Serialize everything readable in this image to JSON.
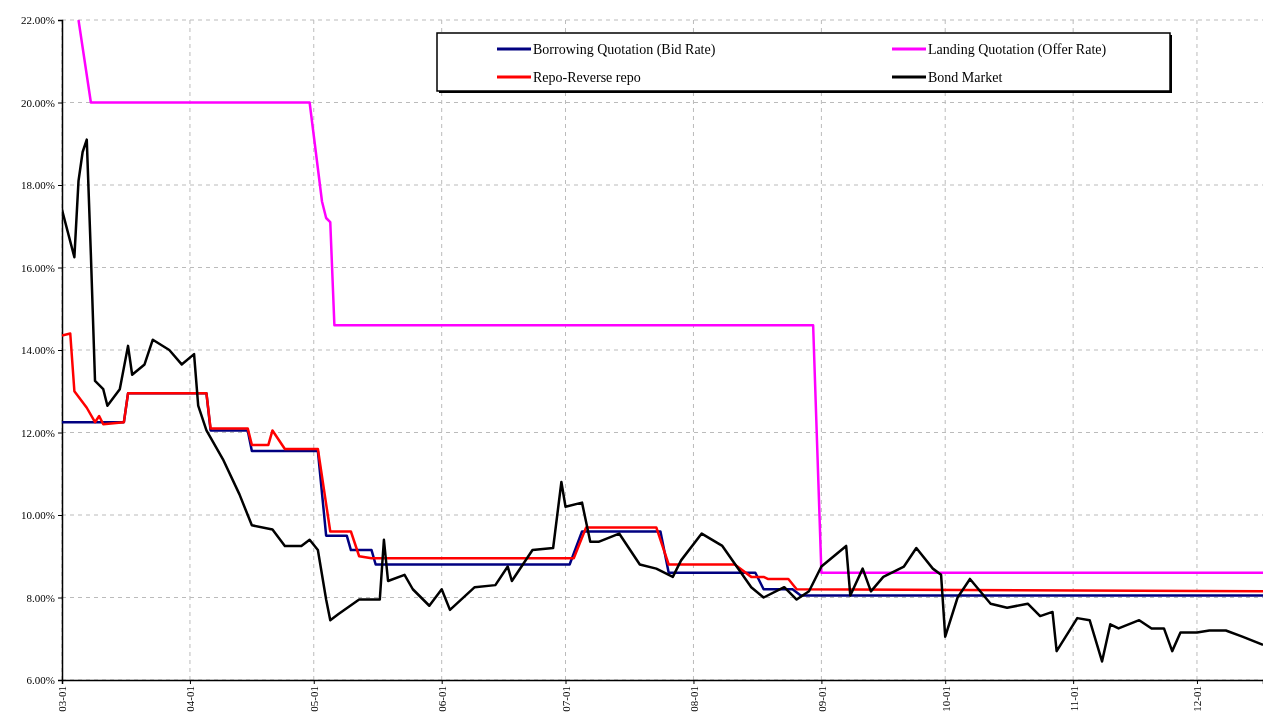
{
  "chart_data": {
    "type": "line",
    "xlim": [
      "--03-01",
      "--12-17"
    ],
    "ylim": [
      6,
      22
    ],
    "xticks": [
      {
        "value": "--03-01",
        "label": "03-01"
      },
      {
        "value": "--04-01",
        "label": "04-01"
      },
      {
        "value": "--05-01",
        "label": "05-01"
      },
      {
        "value": "--06-01",
        "label": "06-01"
      },
      {
        "value": "--07-01",
        "label": "07-01"
      },
      {
        "value": "--08-01",
        "label": "08-01"
      },
      {
        "value": "--09-01",
        "label": "09-01"
      },
      {
        "value": "--10-01",
        "label": "10-01"
      },
      {
        "value": "--11-01",
        "label": "11-01"
      },
      {
        "value": "--12-01",
        "label": "12-01"
      }
    ],
    "yticks": [
      {
        "value": 6,
        "label": "6.00%"
      },
      {
        "value": 8,
        "label": "8.00%"
      },
      {
        "value": 10,
        "label": "10.00%"
      },
      {
        "value": 12,
        "label": "12.00%"
      },
      {
        "value": 14,
        "label": "14.00%"
      },
      {
        "value": 16,
        "label": "16.00%"
      },
      {
        "value": 18,
        "label": "18.00%"
      },
      {
        "value": 20,
        "label": "20.00%"
      },
      {
        "value": 22,
        "label": "22.00%"
      }
    ],
    "grid": true,
    "legend": "top right",
    "series": [
      {
        "name": "Borrowing Quotation (Bid Rate)",
        "color": "#000080",
        "x": [
          "--03-01",
          "--03-16",
          "--03-17",
          "--04-05",
          "--04-06",
          "--04-15",
          "--04-16",
          "--05-02",
          "--05-04",
          "--05-09",
          "--05-10",
          "--05-15",
          "--05-16",
          "--07-02",
          "--07-05",
          "--07-24",
          "--07-26",
          "--08-16",
          "--08-18",
          "--08-25",
          "--08-27",
          "--12-17"
        ],
        "values": [
          12.25,
          12.25,
          12.95,
          12.95,
          12.05,
          12.05,
          11.55,
          11.55,
          9.5,
          9.5,
          9.15,
          9.15,
          8.8,
          8.8,
          9.6,
          9.6,
          8.6,
          8.6,
          8.2,
          8.2,
          8.05,
          8.05
        ]
      },
      {
        "name": "Landing Quotation (Offer Rate)",
        "color": "#ff00ff",
        "x": [
          "--03-05",
          "--03-08",
          "--04-30",
          "--05-03",
          "--05-04",
          "--05-05",
          "--05-06",
          "--08-30",
          "--08-31",
          "--09-01",
          "--12-17"
        ],
        "values": [
          22,
          20,
          20,
          17.6,
          17.2,
          17.1,
          14.6,
          14.6,
          11.6,
          8.6,
          8.6
        ]
      },
      {
        "name": "Repo-Reverse repo",
        "color": "#ff0000",
        "x": [
          "--03-01",
          "--03-03",
          "--03-04",
          "--03-07",
          "--03-09",
          "--03-10",
          "--03-11",
          "--03-16",
          "--03-17",
          "--04-05",
          "--04-06",
          "--04-15",
          "--04-16",
          "--04-20",
          "--04-21",
          "--04-24",
          "--05-02",
          "--05-05",
          "--05-10",
          "--05-12",
          "--05-15",
          "--07-03",
          "--07-06",
          "--07-23",
          "--07-26",
          "--08-11",
          "--08-15",
          "--08-18",
          "--08-19",
          "--08-24",
          "--08-26",
          "--12-17"
        ],
        "values": [
          14.35,
          14.4,
          13,
          12.6,
          12.25,
          12.4,
          12.2,
          12.25,
          12.95,
          12.95,
          12.1,
          12.1,
          11.7,
          11.7,
          12.05,
          11.6,
          11.6,
          9.6,
          9.6,
          9,
          8.95,
          8.95,
          9.7,
          9.7,
          8.8,
          8.8,
          8.5,
          8.5,
          8.45,
          8.45,
          8.2,
          8.15
        ]
      },
      {
        "name": "Bond Market",
        "color": "#000000",
        "x": [
          "--03-01",
          "--03-04",
          "--03-05",
          "--03-06",
          "--03-07",
          "--03-08",
          "--03-09",
          "--03-11",
          "--03-12",
          "--03-15",
          "--03-17",
          "--03-18",
          "--03-21",
          "--03-23",
          "--03-27",
          "--03-30",
          "--04-02",
          "--04-03",
          "--04-05",
          "--04-09",
          "--04-13",
          "--04-16",
          "--04-21",
          "--04-24",
          "--04-28",
          "--04-30",
          "--05-02",
          "--05-04",
          "--05-05",
          "--05-07",
          "--05-12",
          "--05-17",
          "--05-18",
          "--05-19",
          "--05-23",
          "--05-25",
          "--05-29",
          "--06-01",
          "--06-03",
          "--06-09",
          "--06-14",
          "--06-17",
          "--06-18",
          "--06-23",
          "--06-28",
          "--06-30",
          "--07-01",
          "--07-05",
          "--07-07",
          "--07-09",
          "--07-14",
          "--07-19",
          "--07-23",
          "--07-27",
          "--07-29",
          "--08-03",
          "--08-08",
          "--08-15",
          "--08-18",
          "--08-23",
          "--08-26",
          "--08-29",
          "--09-01",
          "--09-07",
          "--09-08",
          "--09-11",
          "--09-13",
          "--09-16",
          "--09-21",
          "--09-24",
          "--09-28",
          "--09-30",
          "--10-01",
          "--10-04",
          "--10-07",
          "--10-12",
          "--10-16",
          "--10-21",
          "--10-24",
          "--10-27",
          "--10-28",
          "--11-02",
          "--11-05",
          "--11-08",
          "--11-10",
          "--11-12",
          "--11-17",
          "--11-20",
          "--11-23",
          "--11-25",
          "--11-27",
          "--12-01",
          "--12-04",
          "--12-08",
          "--12-12",
          "--12-17"
        ],
        "values": [
          17.4,
          16.25,
          18.1,
          18.8,
          19.1,
          16.3,
          13.25,
          13.05,
          12.65,
          13.05,
          14.1,
          13.4,
          13.65,
          14.25,
          14,
          13.65,
          13.9,
          12.65,
          12.05,
          11.35,
          10.5,
          9.75,
          9.65,
          9.25,
          9.25,
          9.4,
          9.15,
          7.95,
          7.45,
          7.6,
          7.95,
          7.95,
          9.4,
          8.4,
          8.55,
          8.2,
          7.8,
          8.2,
          7.7,
          8.25,
          8.3,
          8.75,
          8.4,
          9.15,
          9.2,
          10.8,
          10.2,
          10.3,
          9.35,
          9.35,
          9.55,
          8.8,
          8.7,
          8.5,
          8.9,
          9.55,
          9.25,
          8.25,
          8,
          8.25,
          7.95,
          8.15,
          8.75,
          9.25,
          8.05,
          8.7,
          8.15,
          8.5,
          8.75,
          9.2,
          8.7,
          8.55,
          7.05,
          8,
          8.45,
          7.85,
          7.75,
          7.85,
          7.55,
          7.65,
          6.7,
          7.5,
          7.45,
          6.45,
          7.35,
          7.25,
          7.45,
          7.25,
          7.25,
          6.7,
          7.15,
          7.15,
          7.2,
          7.2,
          7.05,
          6.85
        ]
      }
    ]
  }
}
